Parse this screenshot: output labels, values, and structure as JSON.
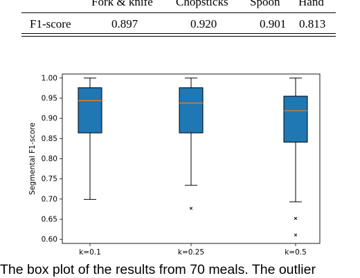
{
  "table": {
    "headers": [
      "",
      "Fork & knife",
      "Chopsticks",
      "Spoon",
      "Hand"
    ],
    "rows": [
      {
        "label": "F1-score",
        "values": [
          "0.897",
          "0.920",
          "0.901",
          "0.813"
        ]
      }
    ]
  },
  "chart_data": {
    "type": "box",
    "title": "",
    "xlabel": "",
    "ylabel": "Segmental F1-score",
    "ylim": [
      0.59,
      1.01
    ],
    "yticks": [
      "0.60",
      "0.65",
      "0.70",
      "0.75",
      "0.80",
      "0.85",
      "0.90",
      "0.95",
      "1.00"
    ],
    "grid": false,
    "box_color": "#1f77b4",
    "median_color": "#ff7f0e",
    "categories": [
      "k=0.1",
      "k=0.25",
      "k=0.5"
    ],
    "boxes": [
      {
        "label": "k=0.1",
        "whisker_low": 0.699,
        "q1": 0.864,
        "median": 0.944,
        "q3": 0.976,
        "whisker_high": 1.0,
        "outliers": []
      },
      {
        "label": "k=0.25",
        "whisker_low": 0.734,
        "q1": 0.864,
        "median": 0.938,
        "q3": 0.976,
        "whisker_high": 1.0,
        "outliers": [
          0.677
        ]
      },
      {
        "label": "k=0.5",
        "whisker_low": 0.693,
        "q1": 0.841,
        "median": 0.919,
        "q3": 0.955,
        "whisker_high": 1.0,
        "outliers": [
          0.652,
          0.611
        ]
      }
    ]
  },
  "caption": "The box plot of the results from 70 meals. The outlier"
}
